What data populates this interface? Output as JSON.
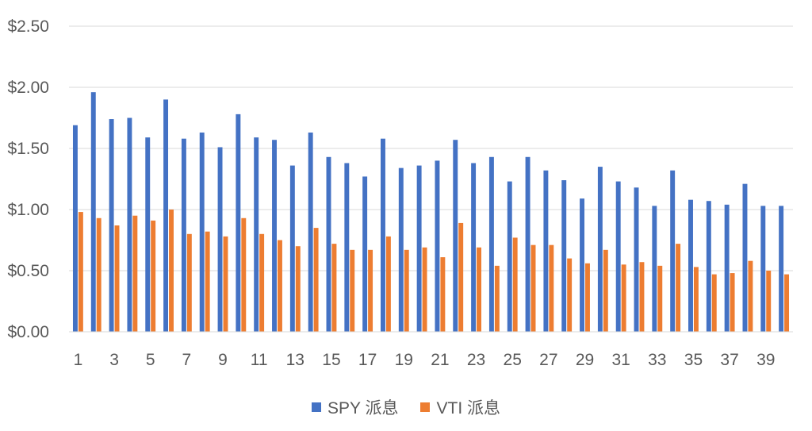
{
  "chart_data": {
    "type": "bar",
    "title": "",
    "xlabel": "",
    "ylabel": "",
    "ylim": [
      0,
      2.5
    ],
    "yticks": [
      "$0.00",
      "$0.50",
      "$1.00",
      "$1.50",
      "$2.00",
      "$2.50"
    ],
    "ytick_values": [
      0,
      0.5,
      1.0,
      1.5,
      2.0,
      2.5
    ],
    "categories": [
      1,
      2,
      3,
      4,
      5,
      6,
      7,
      8,
      9,
      10,
      11,
      12,
      13,
      14,
      15,
      16,
      17,
      18,
      19,
      20,
      21,
      22,
      23,
      24,
      25,
      26,
      27,
      28,
      29,
      30,
      31,
      32,
      33,
      34,
      35,
      36,
      37,
      38,
      39,
      40
    ],
    "xtick_labels": [
      "1",
      "3",
      "5",
      "7",
      "9",
      "11",
      "13",
      "15",
      "17",
      "19",
      "21",
      "23",
      "25",
      "27",
      "29",
      "31",
      "33",
      "35",
      "37",
      "39"
    ],
    "grid": true,
    "legend_position": "bottom",
    "series": [
      {
        "name": "SPY 派息",
        "color": "#4472C4",
        "values": [
          1.69,
          1.96,
          1.74,
          1.75,
          1.59,
          1.9,
          1.58,
          1.63,
          1.51,
          1.78,
          1.59,
          1.57,
          1.36,
          1.63,
          1.43,
          1.38,
          1.27,
          1.58,
          1.34,
          1.36,
          1.4,
          1.57,
          1.38,
          1.43,
          1.23,
          1.43,
          1.32,
          1.24,
          1.09,
          1.35,
          1.23,
          1.18,
          1.03,
          1.32,
          1.08,
          1.07,
          1.04,
          1.21,
          1.03,
          1.03
        ]
      },
      {
        "name": "VTI 派息",
        "color": "#ED7D31",
        "values": [
          0.98,
          0.93,
          0.87,
          0.95,
          0.91,
          1.0,
          0.8,
          0.82,
          0.78,
          0.93,
          0.8,
          0.75,
          0.7,
          0.85,
          0.72,
          0.67,
          0.67,
          0.78,
          0.67,
          0.69,
          0.61,
          0.89,
          0.69,
          0.54,
          0.77,
          0.71,
          0.71,
          0.6,
          0.56,
          0.67,
          0.55,
          0.57,
          0.54,
          0.72,
          0.53,
          0.47,
          0.48,
          0.58,
          0.5,
          0.47
        ]
      }
    ]
  }
}
